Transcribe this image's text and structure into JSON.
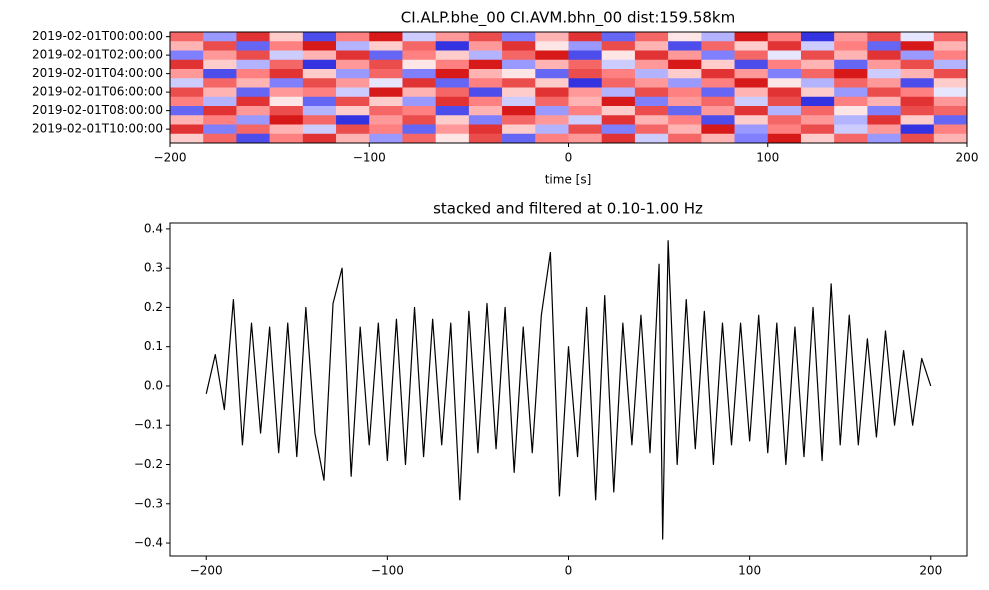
{
  "chart_data": [
    {
      "type": "heatmap",
      "title": "CI.ALP.bhe_00 CI.AVM.bhn_00  dist:159.58km",
      "xlabel": "time [s]",
      "rows": [
        "2019-02-01T00:00:00",
        null,
        "2019-02-01T02:00:00",
        null,
        "2019-02-01T04:00:00",
        null,
        "2019-02-01T06:00:00",
        null,
        "2019-02-01T08:00:00",
        null,
        "2019-02-01T10:00:00",
        null
      ],
      "xlim": [
        -200,
        200
      ],
      "xticks": [
        {
          "value": -200,
          "label": "−200"
        },
        {
          "value": -100,
          "label": "−100"
        },
        0,
        100,
        200
      ],
      "values": [
        [
          0.6,
          -0.4,
          0.8,
          0.2,
          -0.7,
          0.5,
          0.9,
          -0.2,
          0.4,
          0.7,
          -0.5,
          0.3,
          0.8,
          -0.6,
          0.6,
          0.1,
          -0.3,
          0.9,
          0.5,
          -0.8,
          0.4,
          0.7,
          -0.1,
          0.6
        ],
        [
          0.3,
          0.7,
          -0.6,
          0.5,
          0.9,
          -0.3,
          0.2,
          0.6,
          -0.8,
          0.4,
          0.8,
          0.1,
          -0.4,
          0.7,
          0.3,
          -0.7,
          0.6,
          0.2,
          0.8,
          -0.2,
          0.5,
          -0.6,
          0.9,
          0.3
        ],
        [
          -0.5,
          0.4,
          0.7,
          -0.2,
          0.3,
          0.8,
          -0.6,
          0.5,
          0.2,
          -0.3,
          0.6,
          0.9,
          -0.7,
          0.1,
          0.8,
          0.4,
          -0.5,
          0.6,
          -0.1,
          0.7,
          0.3,
          0.8,
          -0.4,
          0.5
        ],
        [
          0.8,
          0.2,
          -0.3,
          0.6,
          -0.8,
          0.4,
          0.7,
          0.1,
          0.5,
          0.9,
          -0.4,
          0.3,
          0.6,
          -0.2,
          0.4,
          0.9,
          0.2,
          -0.7,
          0.5,
          0.3,
          -0.6,
          0.4,
          0.7,
          -0.3
        ],
        [
          0.4,
          -0.7,
          0.5,
          0.8,
          0.2,
          -0.4,
          0.6,
          -0.5,
          0.9,
          0.3,
          0.1,
          -0.6,
          0.7,
          0.5,
          -0.3,
          0.2,
          0.8,
          0.4,
          -0.5,
          0.6,
          0.9,
          -0.2,
          0.3,
          0.7
        ],
        [
          -0.2,
          0.6,
          0.3,
          -0.5,
          0.7,
          0.4,
          -0.1,
          0.8,
          -0.6,
          0.5,
          0.7,
          0.2,
          -0.8,
          0.6,
          0.4,
          -0.4,
          0.5,
          0.9,
          0.1,
          -0.3,
          0.6,
          0.4,
          -0.7,
          0.2
        ],
        [
          0.7,
          0.3,
          -0.6,
          0.4,
          0.5,
          -0.2,
          0.9,
          0.3,
          0.6,
          -0.7,
          0.2,
          0.8,
          0.4,
          -0.3,
          0.7,
          0.5,
          -0.6,
          0.3,
          0.8,
          0.2,
          -0.4,
          0.7,
          0.5,
          -0.1
        ],
        [
          0.5,
          -0.3,
          0.8,
          0.1,
          -0.6,
          0.7,
          0.2,
          -0.4,
          0.8,
          0.5,
          -0.2,
          0.6,
          0.3,
          0.9,
          -0.5,
          0.4,
          0.6,
          -0.2,
          0.7,
          -0.8,
          0.5,
          0.3,
          0.8,
          0.4
        ],
        [
          -0.6,
          0.8,
          0.4,
          0.7,
          -0.3,
          0.2,
          0.6,
          0.5,
          -0.7,
          0.3,
          0.9,
          -0.4,
          0.5,
          0.2,
          0.7,
          -0.6,
          0.4,
          0.8,
          -0.3,
          0.6,
          0.1,
          -0.5,
          0.7,
          0.6
        ],
        [
          0.3,
          0.5,
          -0.4,
          0.9,
          0.6,
          -0.8,
          0.4,
          0.7,
          0.2,
          -0.5,
          0.6,
          0.4,
          -0.2,
          0.8,
          0.3,
          0.5,
          -0.7,
          0.2,
          0.6,
          0.4,
          -0.3,
          0.8,
          0.2,
          -0.6
        ],
        [
          0.8,
          -0.5,
          0.6,
          0.3,
          -0.2,
          0.7,
          0.5,
          -0.6,
          0.4,
          0.8,
          0.2,
          -0.3,
          0.7,
          -0.5,
          0.6,
          0.3,
          0.9,
          -0.4,
          0.5,
          0.7,
          -0.2,
          0.4,
          -0.8,
          0.5
        ],
        [
          0.2,
          0.6,
          -0.7,
          0.5,
          0.8,
          0.3,
          -0.4,
          0.6,
          0.1,
          0.7,
          -0.6,
          0.5,
          0.4,
          0.8,
          -0.2,
          0.6,
          0.3,
          -0.5,
          0.9,
          0.2,
          0.6,
          -0.4,
          0.7,
          0.3
        ]
      ]
    },
    {
      "type": "line",
      "title": "stacked and filtered at 0.10-1.00 Hz",
      "color": "#000000",
      "x": [
        -200,
        -195,
        -190,
        -185,
        -180,
        -175,
        -170,
        -165,
        -160,
        -155,
        -150,
        -145,
        -140,
        -135,
        -130,
        -125,
        -120,
        -115,
        -110,
        -105,
        -100,
        -95,
        -90,
        -85,
        -80,
        -75,
        -70,
        -65,
        -60,
        -55,
        -50,
        -45,
        -40,
        -35,
        -30,
        -25,
        -20,
        -15,
        -10,
        -5,
        0,
        5,
        10,
        15,
        20,
        25,
        30,
        35,
        40,
        45,
        50,
        52,
        55,
        60,
        65,
        70,
        75,
        80,
        85,
        90,
        95,
        100,
        105,
        110,
        115,
        120,
        125,
        130,
        135,
        140,
        145,
        150,
        155,
        160,
        165,
        170,
        175,
        180,
        185,
        190,
        195,
        200
      ],
      "values": [
        -0.02,
        0.08,
        -0.06,
        0.22,
        -0.15,
        0.16,
        -0.12,
        0.15,
        -0.17,
        0.16,
        -0.18,
        0.2,
        -0.12,
        -0.24,
        0.21,
        0.3,
        -0.23,
        0.15,
        -0.15,
        0.16,
        -0.19,
        0.17,
        -0.2,
        0.2,
        -0.18,
        0.17,
        -0.15,
        0.16,
        -0.29,
        0.19,
        -0.17,
        0.21,
        -0.16,
        0.2,
        -0.22,
        0.15,
        -0.17,
        0.18,
        0.34,
        -0.28,
        0.1,
        -0.18,
        0.2,
        -0.29,
        0.23,
        -0.27,
        0.16,
        -0.15,
        0.18,
        -0.17,
        0.31,
        -0.39,
        0.37,
        -0.2,
        0.22,
        -0.16,
        0.19,
        -0.2,
        0.16,
        -0.15,
        0.16,
        -0.14,
        0.18,
        -0.17,
        0.16,
        -0.2,
        0.15,
        -0.18,
        0.2,
        -0.19,
        0.26,
        -0.15,
        0.18,
        -0.15,
        0.12,
        -0.13,
        0.14,
        -0.1,
        0.09,
        -0.1,
        0.07,
        0.0
      ],
      "xlim": [
        -220,
        220
      ],
      "xticks": [
        {
          "value": -200,
          "label": "−200"
        },
        {
          "value": -100,
          "label": "−100"
        },
        0,
        100,
        200
      ],
      "ylim": [
        -0.433,
        0.415
      ],
      "yticks": [
        {
          "value": -0.4,
          "label": "−0.4"
        },
        {
          "value": -0.3,
          "label": "−0.3"
        },
        {
          "value": -0.2,
          "label": "−0.2"
        },
        {
          "value": -0.1,
          "label": "−0.1"
        },
        {
          "value": 0,
          "label": "0.0"
        },
        0.1,
        0.2,
        0.3,
        0.4
      ]
    }
  ]
}
